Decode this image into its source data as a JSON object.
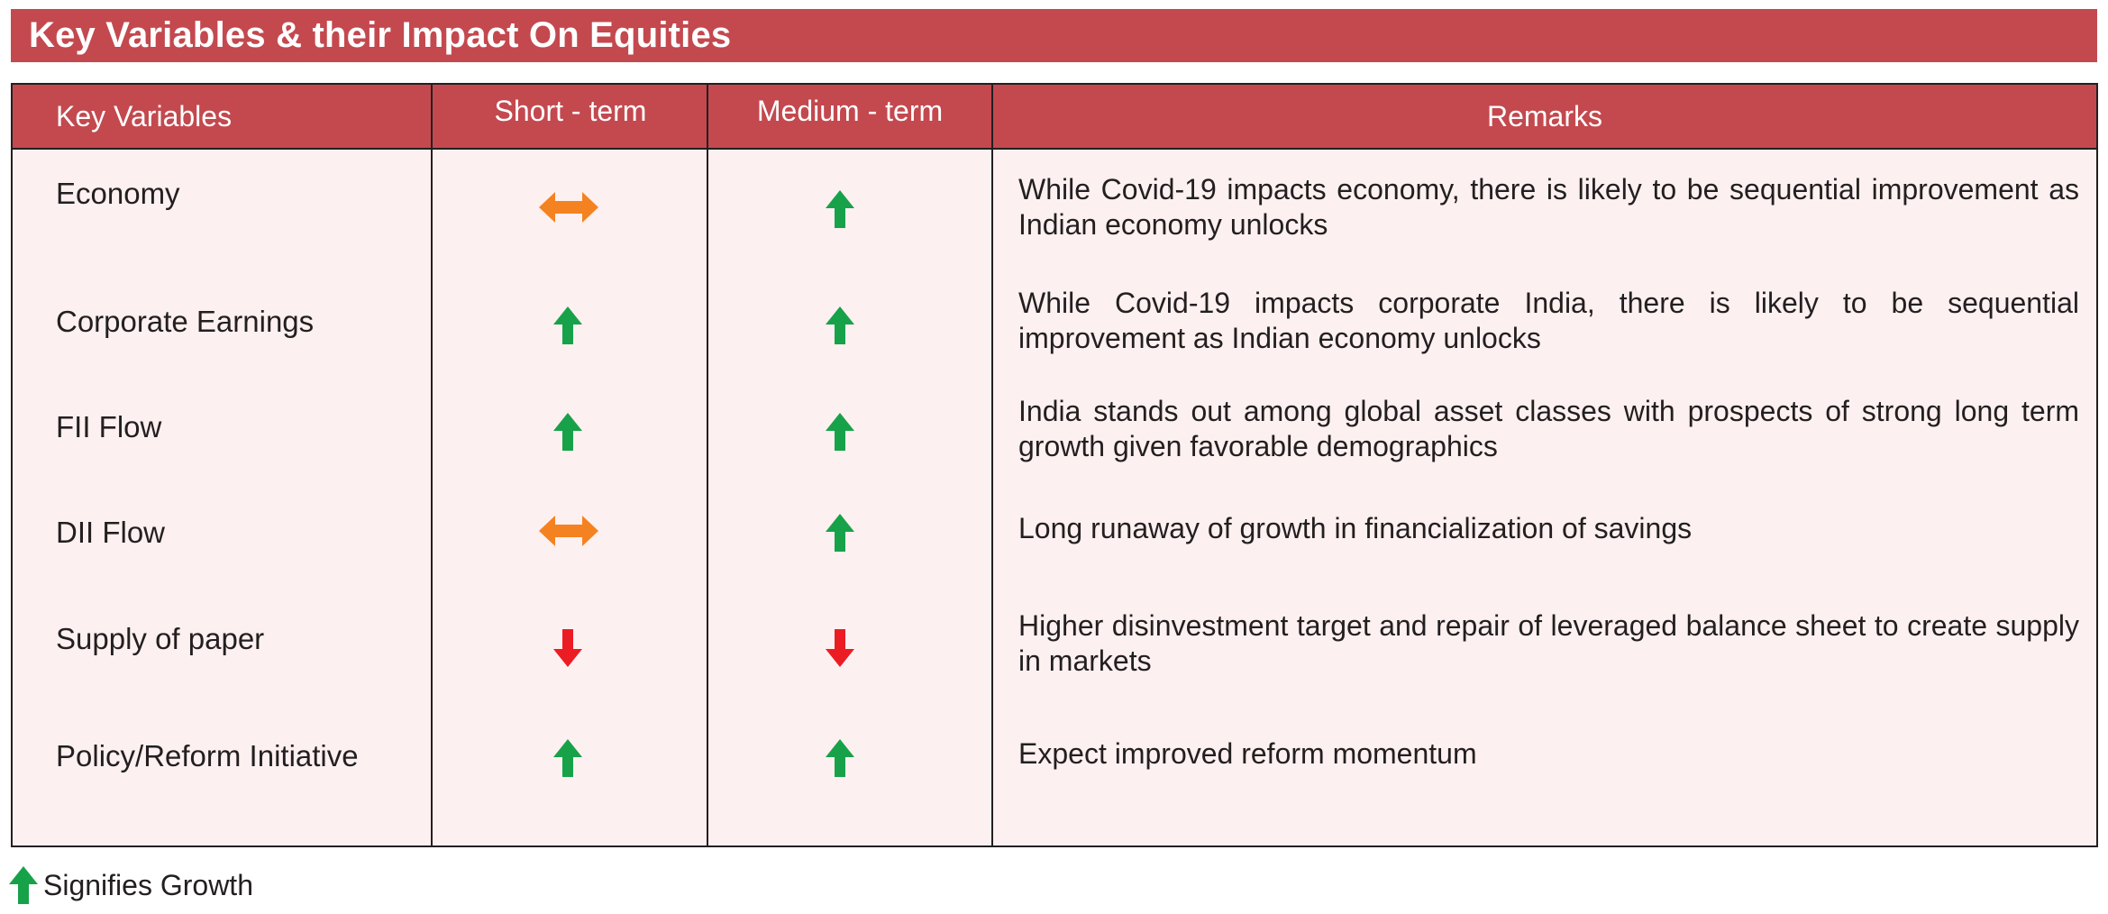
{
  "title": "Key Variables & their Impact On Equities",
  "colors": {
    "brand": "#c3494f",
    "row_bg": "#fdf0f0",
    "up": "#17a24a",
    "down": "#ec1c24",
    "neutral": "#f58220"
  },
  "columns": {
    "variable": "Key Variables",
    "short_term": "Short  - term",
    "medium_term": "Medium - term",
    "remarks": "Remarks"
  },
  "rows": [
    {
      "variable": "Economy",
      "short_term": "neutral",
      "medium_term": "up",
      "remarks": "While Covid-19 impacts economy, there is likely to be sequential improvement as Indian economy unlocks"
    },
    {
      "variable": "Corporate Earnings",
      "short_term": "up",
      "medium_term": "up",
      "remarks": "While Covid-19 impacts corporate India, there is likely to be sequential improvement as Indian economy unlocks"
    },
    {
      "variable": "FII Flow",
      "short_term": "up",
      "medium_term": "up",
      "remarks": "India stands out among global asset classes with prospects of strong long term growth given favorable demographics"
    },
    {
      "variable": "DII Flow",
      "short_term": "neutral",
      "medium_term": "up",
      "remarks": "Long runaway of growth in financialization of savings"
    },
    {
      "variable": "Supply of paper",
      "short_term": "down",
      "medium_term": "down",
      "remarks": "Higher disinvestment target and repair of leveraged balance sheet to create supply in markets"
    },
    {
      "variable": "Policy/Reform Initiative",
      "short_term": "up",
      "medium_term": "up",
      "remarks": "Expect improved reform momentum"
    }
  ],
  "legend": {
    "icon": "up-arrow-icon",
    "label": "Signifies Growth"
  }
}
